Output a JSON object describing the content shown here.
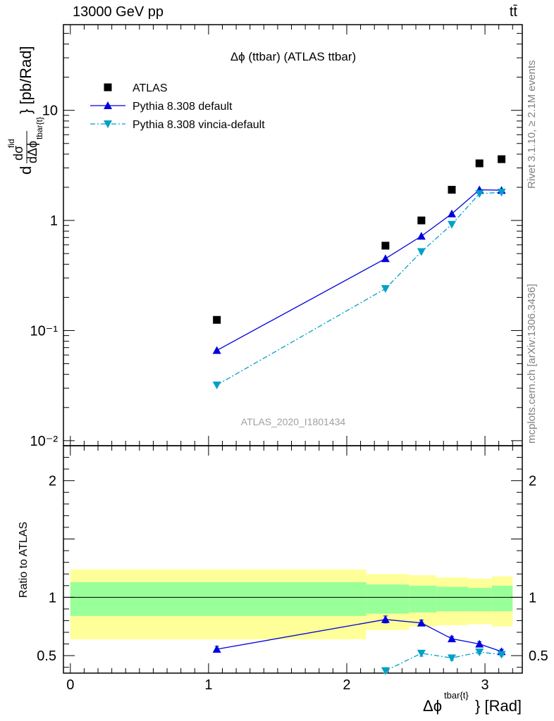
{
  "header": {
    "left": "13000 GeV pp",
    "right": "tt̄"
  },
  "side_labels": {
    "rivet": "Rivet 3.1.10, ≥ 2.1M events",
    "mcplots": "mcplots.cern.ch [arXiv:1306.3436]"
  },
  "colors": {
    "atlas": "#000000",
    "default": "#0000dd",
    "vincia": "#00a0c8",
    "band_inner": "#99ff99",
    "band_outer": "#ffff99"
  },
  "chart_data": [
    {
      "type": "scatter",
      "title": "Δϕ (ttbar) (ATLAS ttbar)",
      "ylabel": "dσ^fid / dΔϕ^{tbar{t}} [pb/Rad]",
      "yscale": "log",
      "ylim": [
        0.009,
        60
      ],
      "xlim": [
        -0.05,
        3.27
      ],
      "watermark": "ATLAS_2020_I1801434",
      "y_ticks": [
        "10⁻²",
        "10⁻¹",
        "1",
        "10"
      ],
      "legend_position": "top-left",
      "series": [
        {
          "name": "ATLAS",
          "x": [
            1.06,
            2.28,
            2.54,
            2.76,
            2.96,
            3.12
          ],
          "y": [
            0.125,
            0.59,
            1.0,
            1.9,
            3.3,
            3.6
          ]
        },
        {
          "name": "Pythia 8.308 default",
          "x": [
            1.06,
            2.28,
            2.54,
            2.76,
            2.96,
            3.12
          ],
          "y": [
            0.066,
            0.45,
            0.72,
            1.15,
            1.9,
            1.88
          ]
        },
        {
          "name": "Pythia 8.308 vincia-default",
          "x": [
            1.06,
            2.28,
            2.54,
            2.76,
            2.96,
            3.12
          ],
          "y": [
            0.032,
            0.24,
            0.52,
            0.92,
            1.75,
            1.8
          ]
        }
      ]
    },
    {
      "type": "line",
      "ylabel": "Ratio to ATLAS",
      "xlabel": "Δϕ^{tbar{t}} [Rad]",
      "xlim": [
        -0.05,
        3.27
      ],
      "ylim": [
        0.35,
        2.3
      ],
      "x_ticks": [
        0,
        1,
        2,
        3
      ],
      "y_ticks": [
        0.5,
        1,
        2
      ],
      "bands": {
        "edges": [
          0.0,
          2.14,
          2.45,
          2.65,
          2.88,
          3.05,
          3.2
        ],
        "outer_low": [
          0.64,
          0.72,
          0.75,
          0.76,
          0.77,
          0.75
        ],
        "outer_high": [
          1.24,
          1.2,
          1.19,
          1.17,
          1.16,
          1.18
        ],
        "inner_low": [
          0.84,
          0.86,
          0.87,
          0.88,
          0.88,
          0.88
        ],
        "inner_high": [
          1.13,
          1.11,
          1.1,
          1.09,
          1.08,
          1.1
        ]
      },
      "series": [
        {
          "name": "Pythia 8.308 default",
          "x": [
            1.06,
            2.28,
            2.54,
            2.76,
            2.96,
            3.12
          ],
          "y": [
            0.555,
            0.81,
            0.78,
            0.645,
            0.6,
            0.535
          ],
          "err": [
            0.025,
            0.03,
            0.025,
            0.02,
            0.02,
            0.02
          ]
        },
        {
          "name": "Pythia 8.308 vincia-default",
          "x": [
            2.28,
            2.54,
            2.76,
            2.96,
            3.12
          ],
          "y": [
            0.37,
            0.52,
            0.48,
            0.53,
            0.51
          ],
          "err": [
            0.02,
            0.025,
            0.02,
            0.015,
            0.015
          ]
        }
      ]
    }
  ]
}
